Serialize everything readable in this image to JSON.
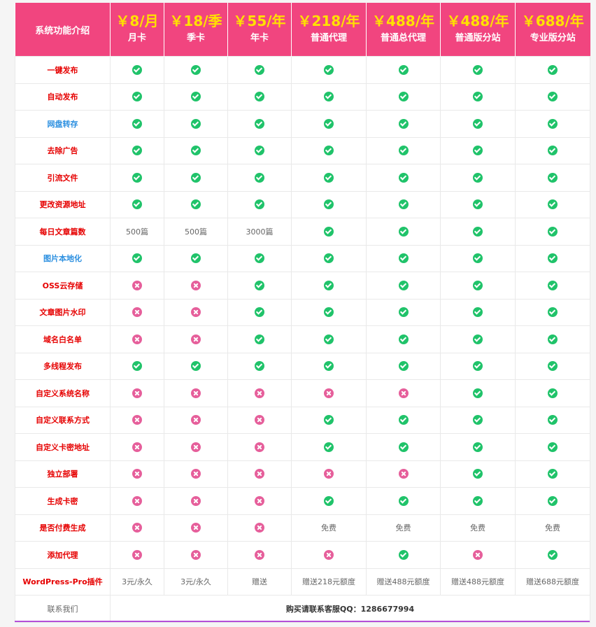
{
  "header": {
    "feature_label": "系统功能介绍",
    "plans": [
      {
        "price": "￥8/月",
        "name": "月卡"
      },
      {
        "price": "￥18/季",
        "name": "季卡"
      },
      {
        "price": "￥55/年",
        "name": "年卡"
      },
      {
        "price": "￥218/年",
        "name": "普通代理"
      },
      {
        "price": "￥488/年",
        "name": "普通总代理"
      },
      {
        "price": "￥488/年",
        "name": "普通版分站"
      },
      {
        "price": "￥688/年",
        "name": "专业版分站"
      }
    ]
  },
  "colors": {
    "header_bg": "#f1457f",
    "price": "#ffe100",
    "check": "#20c36a",
    "cross": "#e65f9b",
    "feature_red": "#e60000",
    "feature_blue": "#2b8fe0"
  },
  "rows": [
    {
      "feature": "一键发布",
      "color": "red",
      "cells": [
        "yes",
        "yes",
        "yes",
        "yes",
        "yes",
        "yes",
        "yes"
      ]
    },
    {
      "feature": "自动发布",
      "color": "red",
      "cells": [
        "yes",
        "yes",
        "yes",
        "yes",
        "yes",
        "yes",
        "yes"
      ]
    },
    {
      "feature": "网盘转存",
      "color": "blue",
      "cells": [
        "yes",
        "yes",
        "yes",
        "yes",
        "yes",
        "yes",
        "yes"
      ]
    },
    {
      "feature": "去除广告",
      "color": "red",
      "cells": [
        "yes",
        "yes",
        "yes",
        "yes",
        "yes",
        "yes",
        "yes"
      ]
    },
    {
      "feature": "引流文件",
      "color": "red",
      "cells": [
        "yes",
        "yes",
        "yes",
        "yes",
        "yes",
        "yes",
        "yes"
      ]
    },
    {
      "feature": "更改资源地址",
      "color": "red",
      "cells": [
        "yes",
        "yes",
        "yes",
        "yes",
        "yes",
        "yes",
        "yes"
      ]
    },
    {
      "feature": "每日文章篇数",
      "color": "red",
      "cells": [
        "500篇",
        "500篇",
        "3000篇",
        "yes",
        "yes",
        "yes",
        "yes"
      ]
    },
    {
      "feature": "图片本地化",
      "color": "blue",
      "cells": [
        "yes",
        "yes",
        "yes",
        "yes",
        "yes",
        "yes",
        "yes"
      ]
    },
    {
      "feature": "OSS云存储",
      "color": "red",
      "cells": [
        "no",
        "no",
        "yes",
        "yes",
        "yes",
        "yes",
        "yes"
      ]
    },
    {
      "feature": "文章图片水印",
      "color": "red",
      "cells": [
        "no",
        "no",
        "yes",
        "yes",
        "yes",
        "yes",
        "yes"
      ]
    },
    {
      "feature": "域名白名单",
      "color": "red",
      "cells": [
        "no",
        "no",
        "yes",
        "yes",
        "yes",
        "yes",
        "yes"
      ]
    },
    {
      "feature": "多线程发布",
      "color": "red",
      "cells": [
        "yes",
        "yes",
        "yes",
        "yes",
        "yes",
        "yes",
        "yes"
      ]
    },
    {
      "feature": "自定义系统名称",
      "color": "red",
      "cells": [
        "no",
        "no",
        "no",
        "no",
        "no",
        "yes",
        "yes"
      ]
    },
    {
      "feature": "自定义联系方式",
      "color": "red",
      "cells": [
        "no",
        "no",
        "no",
        "yes",
        "yes",
        "yes",
        "yes"
      ]
    },
    {
      "feature": "自定义卡密地址",
      "color": "red",
      "cells": [
        "no",
        "no",
        "no",
        "yes",
        "yes",
        "yes",
        "yes"
      ]
    },
    {
      "feature": "独立部署",
      "color": "red",
      "cells": [
        "no",
        "no",
        "no",
        "no",
        "no",
        "yes",
        "yes"
      ]
    },
    {
      "feature": "生成卡密",
      "color": "red",
      "cells": [
        "no",
        "no",
        "no",
        "yes",
        "yes",
        "yes",
        "yes"
      ]
    },
    {
      "feature": "是否付费生成",
      "color": "red",
      "cells": [
        "no",
        "no",
        "no",
        "免费",
        "免费",
        "免费",
        "免费"
      ]
    },
    {
      "feature": "添加代理",
      "color": "red",
      "cells": [
        "no",
        "no",
        "no",
        "no",
        "yes",
        "no",
        "yes"
      ]
    },
    {
      "feature": "WordPress-Pro插件",
      "color": "red",
      "cells": [
        "3元/永久",
        "3元/永久",
        "赠送",
        "赠送218元额度",
        "赠送488元额度",
        "赠送488元额度",
        "赠送688元额度"
      ]
    }
  ],
  "contact": {
    "label": "联系我们",
    "text": "购买请联系客服QQ：1286677994"
  }
}
